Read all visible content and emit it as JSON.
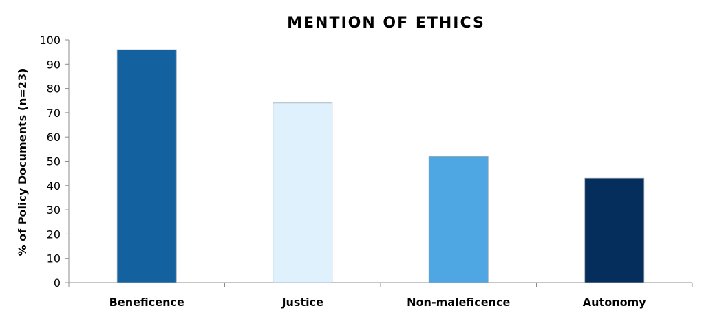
{
  "chart_data": {
    "type": "bar",
    "title": "MENTION OF ETHICS",
    "xlabel": "",
    "ylabel": "% of Policy Documents (n=23)",
    "ylim": [
      0,
      100
    ],
    "yticks": [
      0,
      10,
      20,
      30,
      40,
      50,
      60,
      70,
      80,
      90,
      100
    ],
    "categories": [
      "Beneficence",
      "Justice",
      "Non-maleficence",
      "Autonomy"
    ],
    "values": [
      96,
      74,
      52,
      43
    ],
    "colors": [
      "#1461a0",
      "#dff1fd",
      "#4ea7e2",
      "#062e5c"
    ],
    "grid": false,
    "legend": "none"
  }
}
